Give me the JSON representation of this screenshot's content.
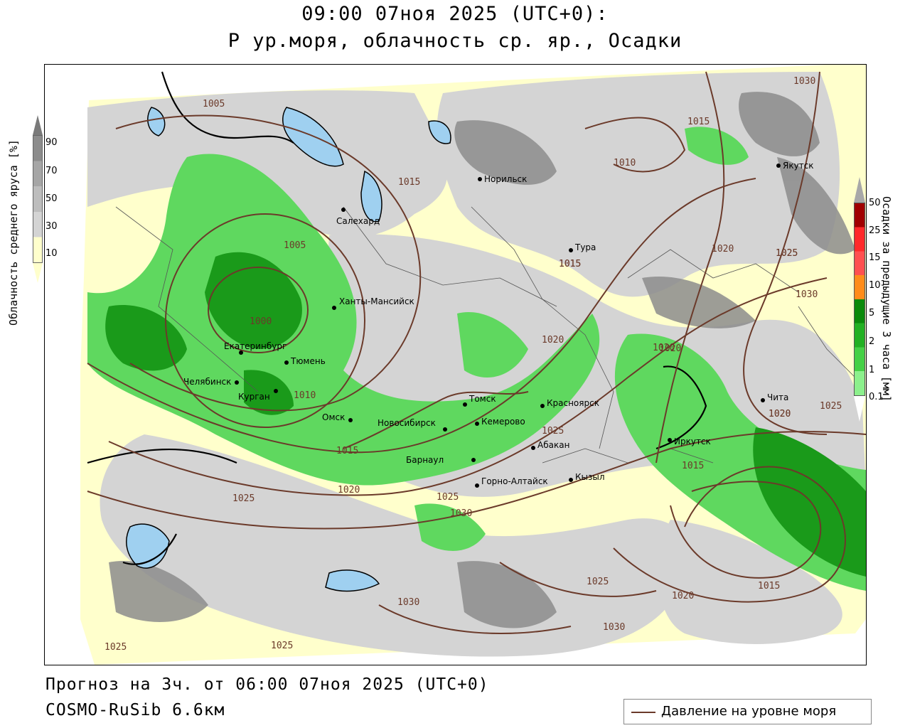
{
  "header": {
    "title_line1": "09:00 07ноя 2025 (UTC+0):",
    "title_line2": "P ур.моря, облачность ср. яр., Осадки"
  },
  "footer": {
    "forecast": "Прогноз на 3ч. от 06:00 07ноя 2025 (UTC+0)",
    "model": "COSMO-RuSib 6.6км",
    "legend_label": "Давление на уровне моря"
  },
  "cloud_scale": {
    "title": "Облачность среднего яруса [%]",
    "labels": [
      "90",
      "70",
      "50",
      "30",
      "10"
    ],
    "colors": [
      "#8c8c8c",
      "#a6a6a6",
      "#bdbdbd",
      "#d4d4d4",
      "#ffffcc"
    ]
  },
  "precip_scale": {
    "title": "Осадки за предыдущие 3 часа [мм]",
    "labels": [
      "50",
      "25",
      "15",
      "10",
      "5",
      "2",
      "1",
      "0.1"
    ],
    "colors": [
      "#a00000",
      "#ff2a2a",
      "#ff5050",
      "#ff8c1a",
      "#0a8a0a",
      "#22b022",
      "#45d045",
      "#8cf08c"
    ]
  },
  "colors": {
    "isobar": "#6b3a2a",
    "water": "#9fd0f0",
    "land_yellow": "#ffffcc",
    "cloud_gray": "#d4d4d4",
    "cloud_dark": "#8c8c8c",
    "precip_green": "#5fd85f",
    "precip_dark": "#1a9a1a"
  },
  "cities": [
    {
      "name": "Норильск"
    },
    {
      "name": "Якутск"
    },
    {
      "name": "Салехард"
    },
    {
      "name": "Тура"
    },
    {
      "name": "Ханты-Мансийск"
    },
    {
      "name": "Екатеринбург"
    },
    {
      "name": "Тюмень"
    },
    {
      "name": "Челябинск"
    },
    {
      "name": "Курган"
    },
    {
      "name": "Омск"
    },
    {
      "name": "Томск"
    },
    {
      "name": "Красноярск"
    },
    {
      "name": "Новосибирск"
    },
    {
      "name": "Кемерово"
    },
    {
      "name": "Абакан"
    },
    {
      "name": "Барнаул"
    },
    {
      "name": "Горно-Алтайск"
    },
    {
      "name": "Кызыл"
    },
    {
      "name": "Иркутск"
    },
    {
      "name": "Чита"
    }
  ],
  "isobar_labels": [
    {
      "value": "1005"
    },
    {
      "value": "1005"
    },
    {
      "value": "1015"
    },
    {
      "value": "1000"
    },
    {
      "value": "1010"
    },
    {
      "value": "1015"
    },
    {
      "value": "1020"
    },
    {
      "value": "1025"
    },
    {
      "value": "1030"
    },
    {
      "value": "1025"
    },
    {
      "value": "1020"
    },
    {
      "value": "1015"
    },
    {
      "value": "1025"
    },
    {
      "value": "1020"
    },
    {
      "value": "1015"
    },
    {
      "value": "1025"
    },
    {
      "value": "1025"
    },
    {
      "value": "1030"
    },
    {
      "value": "1030"
    },
    {
      "value": "1025"
    },
    {
      "value": "1030"
    },
    {
      "value": "1020"
    },
    {
      "value": "1015"
    },
    {
      "value": "1025"
    },
    {
      "value": "1020"
    },
    {
      "value": "1020"
    },
    {
      "value": "1025"
    },
    {
      "value": "1030"
    },
    {
      "value": "1015"
    },
    {
      "value": "1010"
    },
    {
      "value": "1020"
    },
    {
      "value": "1025"
    },
    {
      "value": "1020"
    },
    {
      "value": "1015"
    }
  ]
}
